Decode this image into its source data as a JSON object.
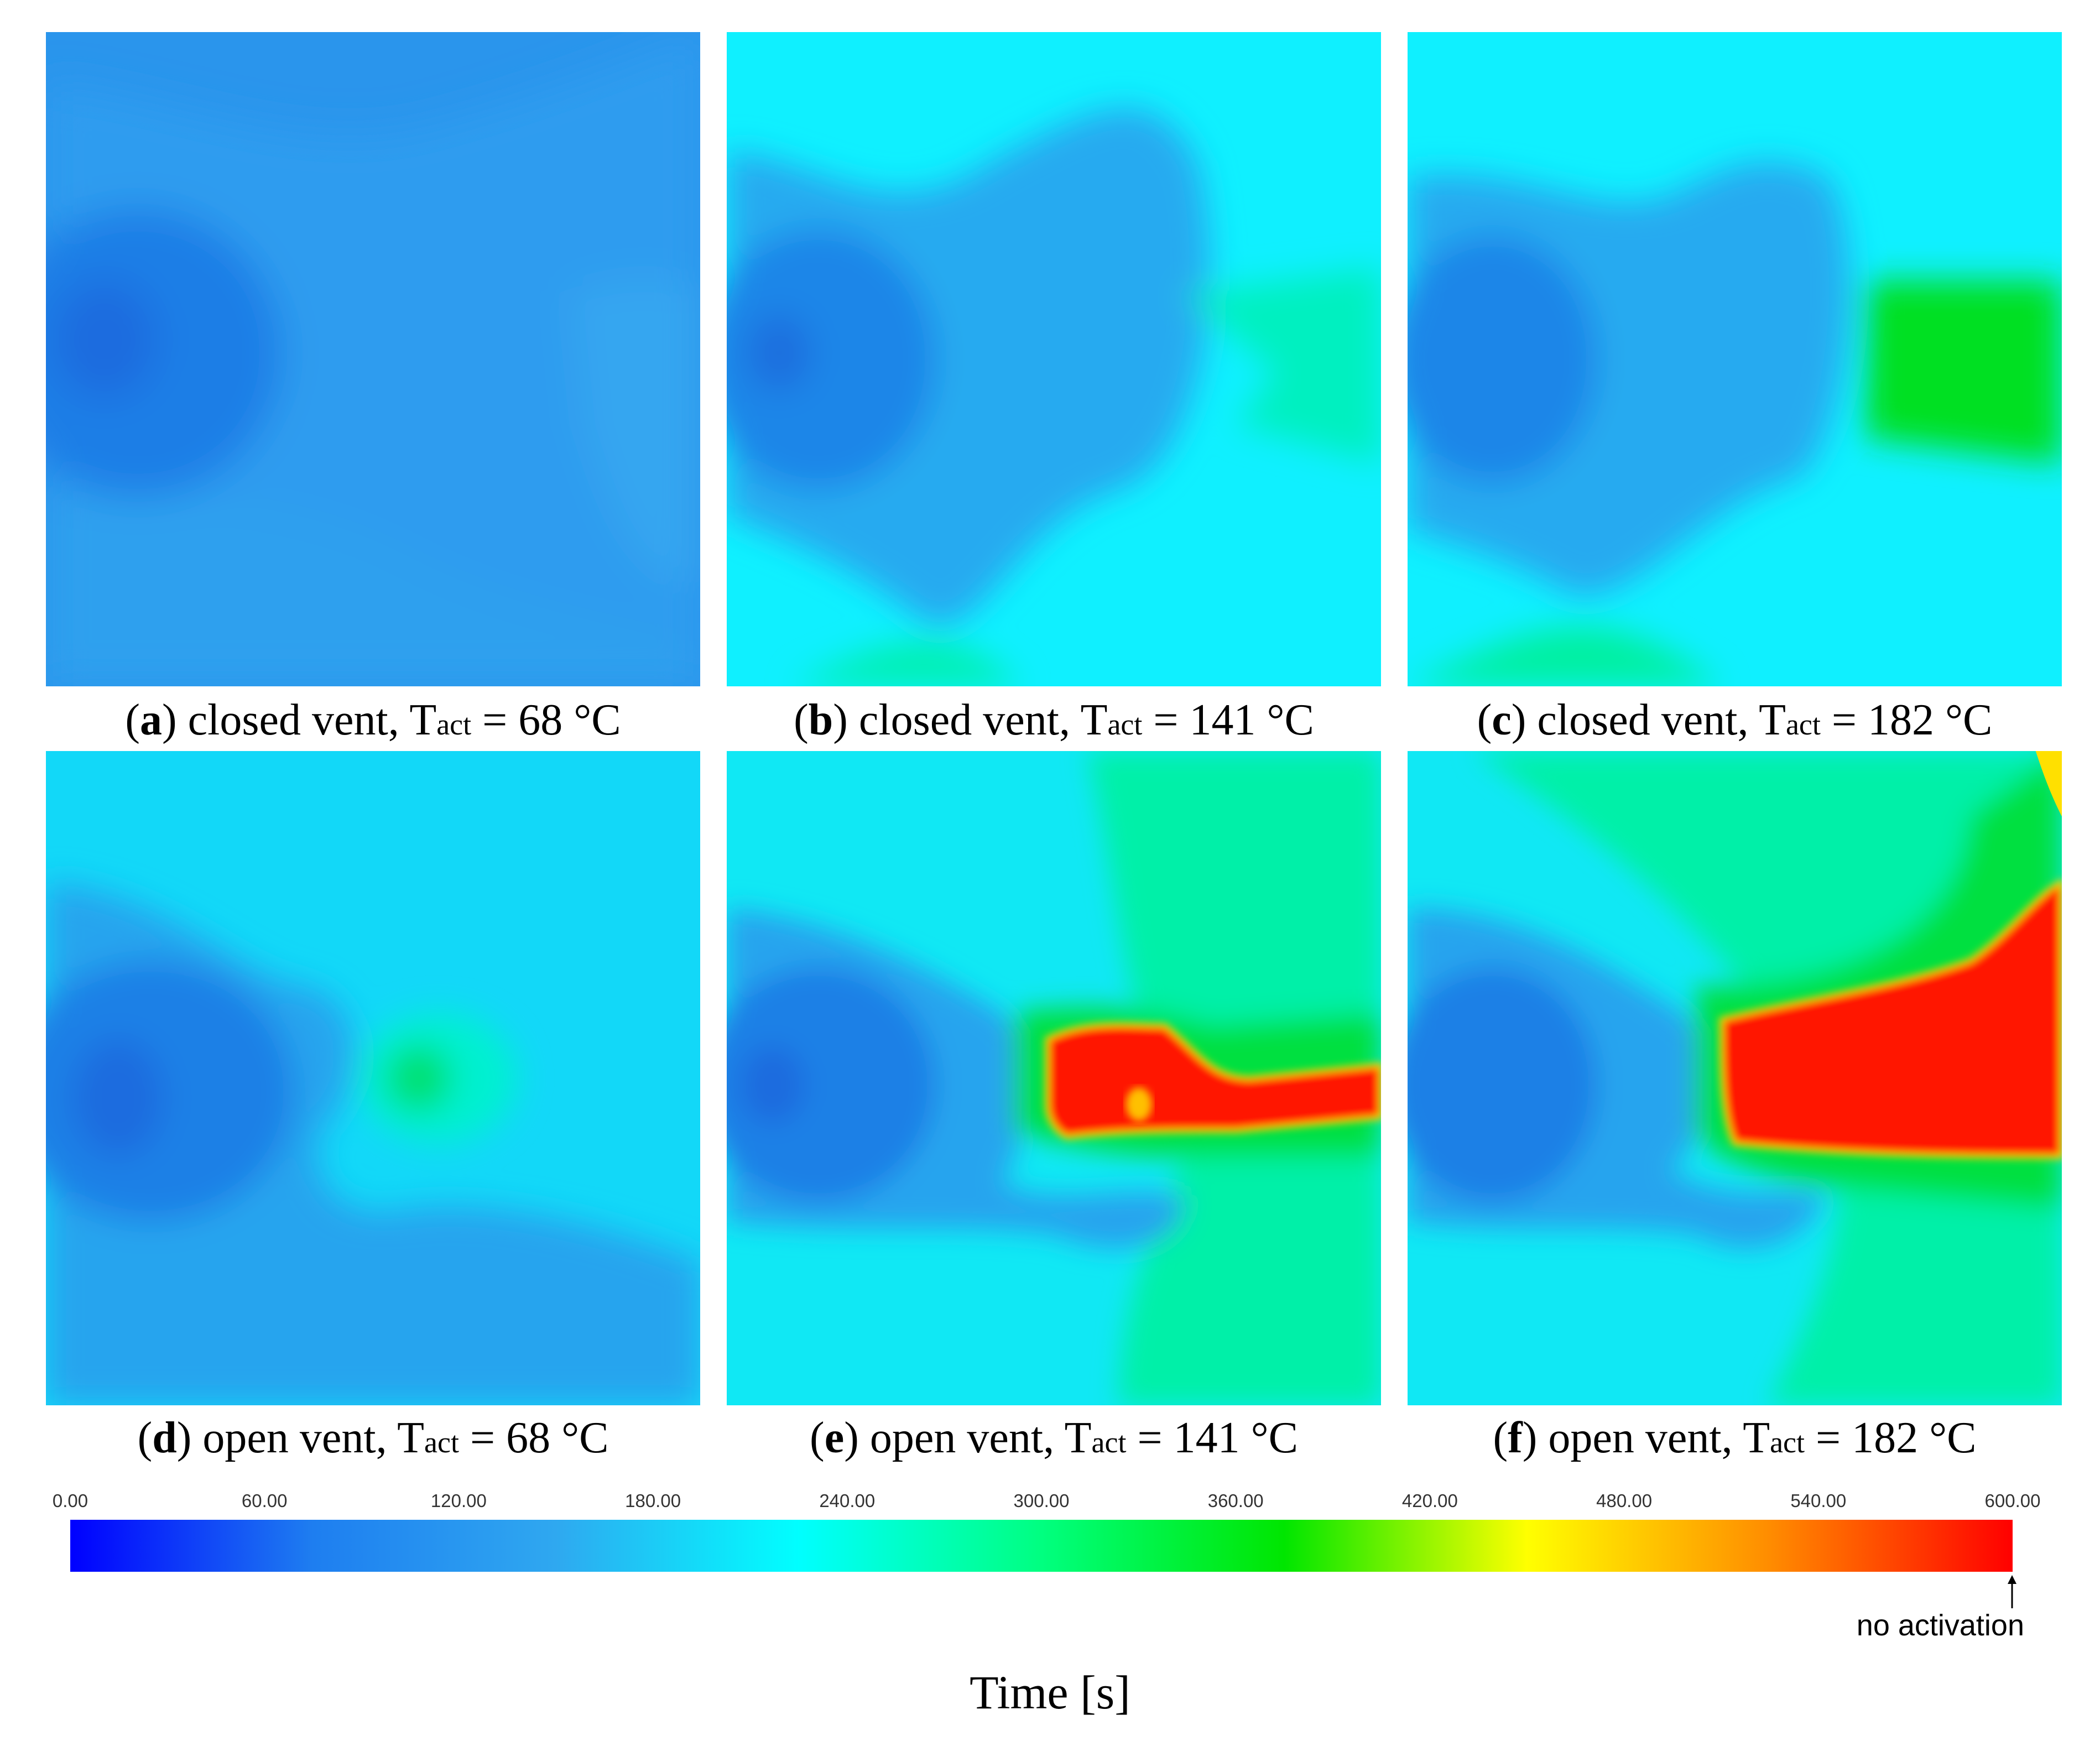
{
  "chart_data": {
    "type": "heatmap",
    "panels": [
      {
        "id": "a",
        "label": "a",
        "caption": "closed vent, ",
        "t_symbol": "T",
        "t_sub": "act",
        "t_value": " = 68 °C",
        "vent": "closed",
        "t_act_c": 68
      },
      {
        "id": "b",
        "label": "b",
        "caption": "closed vent, ",
        "t_symbol": "T",
        "t_sub": "act",
        "t_value": " = 141 °C",
        "vent": "closed",
        "t_act_c": 141
      },
      {
        "id": "c",
        "label": "c",
        "caption": "closed vent, ",
        "t_symbol": "T",
        "t_sub": "act",
        "t_value": " = 182 °C",
        "vent": "closed",
        "t_act_c": 182
      },
      {
        "id": "d",
        "label": "d",
        "caption": "open vent, ",
        "t_symbol": "T",
        "t_sub": "act",
        "t_value": " = 68 °C",
        "vent": "open",
        "t_act_c": 68
      },
      {
        "id": "e",
        "label": "e",
        "caption": "open vent, ",
        "t_symbol": "T",
        "t_sub": "act",
        "t_value": " = 141 °C",
        "vent": "open",
        "t_act_c": 141
      },
      {
        "id": "f",
        "label": "f",
        "caption": "open vent, ",
        "t_symbol": "T",
        "t_sub": "act",
        "t_value": " = 182 °C",
        "vent": "open",
        "t_act_c": 182
      }
    ],
    "colorbar": {
      "ticks": [
        "0.00",
        "60.00",
        "120.00",
        "180.00",
        "240.00",
        "300.00",
        "360.00",
        "420.00",
        "480.00",
        "540.00",
        "600.00"
      ],
      "range": [
        0,
        600
      ],
      "end_note": "no activation",
      "label": "Time [s]",
      "colors": [
        "#0000ff",
        "#1e7ef0",
        "#2fa8f0",
        "#00ffff",
        "#00ff80",
        "#00e600",
        "#ffff00",
        "#ff8c00",
        "#ff0000"
      ]
    }
  }
}
